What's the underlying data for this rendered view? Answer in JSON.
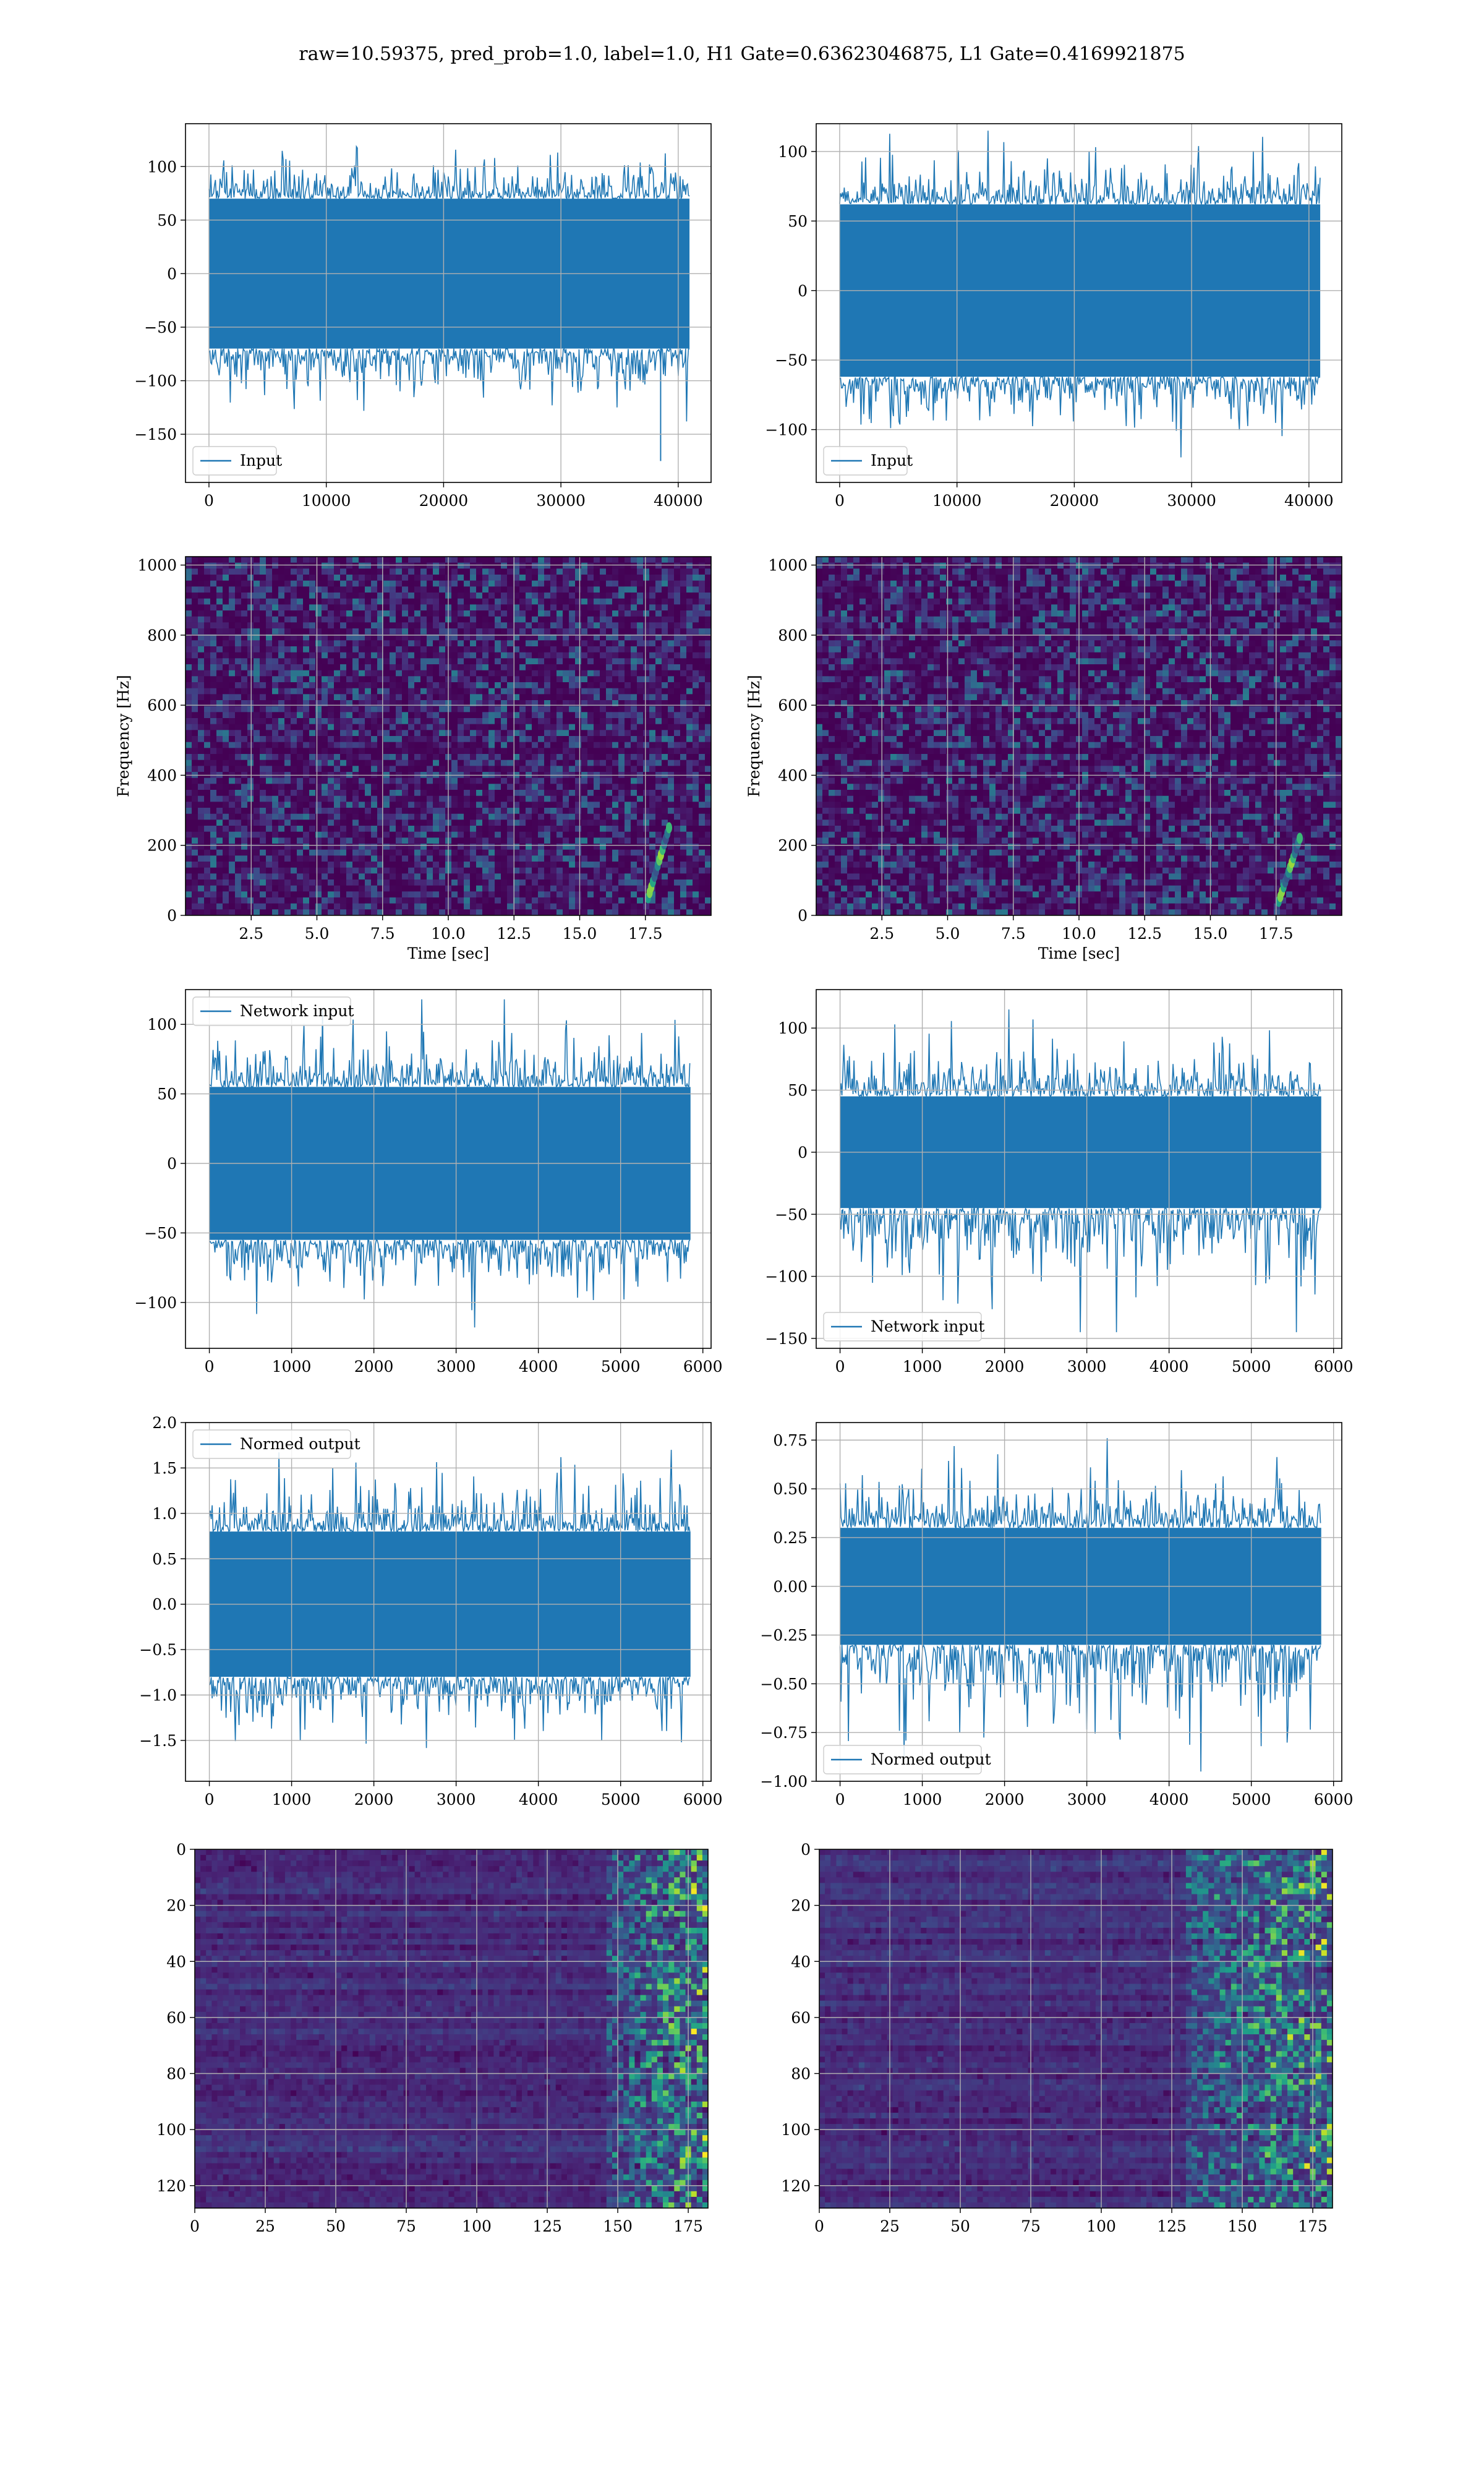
{
  "figure_title": "raw=10.59375, pred_prob=1.0, label=1.0, H1 Gate=0.63623046875, L1 Gate=0.4169921875",
  "colors": {
    "line": "#1f77b4",
    "viridis_low": "#440154",
    "viridis_mid": "#21918c",
    "viridis_high": "#fde725"
  },
  "chart_data": [
    {
      "type": "line",
      "panel": "row1-left",
      "legend": "Input",
      "legend_loc": "lower-left",
      "xlim": [
        -2000,
        42800
      ],
      "ylim": [
        -195,
        140
      ],
      "xticks": [
        0,
        10000,
        20000,
        30000,
        40000
      ],
      "xtick_labels": [
        "0",
        "10000",
        "20000",
        "30000",
        "40000"
      ],
      "yticks": [
        -150,
        -100,
        -50,
        0,
        50,
        100
      ],
      "ytick_labels": [
        "−150",
        "−100",
        "−50",
        "0",
        "50",
        "100"
      ],
      "signal": {
        "x_start": 0,
        "x_end": 40960,
        "band": [
          -70,
          70
        ],
        "spikes": [
          -145,
          132
        ],
        "notable": [
          {
            "x": 38500,
            "y": -175
          }
        ]
      }
    },
    {
      "type": "line",
      "panel": "row1-right",
      "legend": "Input",
      "legend_loc": "lower-left",
      "xlim": [
        -2000,
        42800
      ],
      "ylim": [
        -138,
        120
      ],
      "xticks": [
        0,
        10000,
        20000,
        30000,
        40000
      ],
      "xtick_labels": [
        "0",
        "10000",
        "20000",
        "30000",
        "40000"
      ],
      "yticks": [
        -100,
        -50,
        0,
        50,
        100
      ],
      "ytick_labels": [
        "−100",
        "−50",
        "0",
        "50",
        "100"
      ],
      "signal": {
        "x_start": 0,
        "x_end": 40960,
        "band": [
          -62,
          62
        ],
        "spikes": [
          -120,
          115
        ],
        "notable": []
      }
    },
    {
      "type": "heatmap",
      "panel": "row2-left",
      "xlabel": "Time [sec]",
      "ylabel": "Frequency [Hz]",
      "xlim": [
        0,
        20
      ],
      "ylim": [
        0,
        1024
      ],
      "xticks": [
        2.5,
        5.0,
        7.5,
        10.0,
        12.5,
        15.0,
        17.5
      ],
      "xtick_labels": [
        "2.5",
        "5.0",
        "7.5",
        "10.0",
        "12.5",
        "15.0",
        "17.5"
      ],
      "yticks": [
        0,
        200,
        400,
        600,
        800,
        1000
      ],
      "ytick_labels": [
        "0",
        "200",
        "400",
        "600",
        "800",
        "1000"
      ],
      "colormap": "viridis",
      "chirp": {
        "t": [
          17.6,
          18.4
        ],
        "f": [
          50,
          250
        ]
      }
    },
    {
      "type": "heatmap",
      "panel": "row2-right",
      "xlabel": "Time [sec]",
      "ylabel": "Frequency [Hz]",
      "xlim": [
        0,
        20
      ],
      "ylim": [
        0,
        1024
      ],
      "xticks": [
        2.5,
        5.0,
        7.5,
        10.0,
        12.5,
        15.0,
        17.5
      ],
      "xtick_labels": [
        "2.5",
        "5.0",
        "7.5",
        "10.0",
        "12.5",
        "15.0",
        "17.5"
      ],
      "yticks": [
        0,
        200,
        400,
        600,
        800,
        1000
      ],
      "ytick_labels": [
        "0",
        "200",
        "400",
        "600",
        "800",
        "1000"
      ],
      "colormap": "viridis",
      "chirp": {
        "t": [
          17.6,
          18.4
        ],
        "f": [
          40,
          220
        ]
      }
    },
    {
      "type": "line",
      "panel": "row3-left",
      "legend": "Network input",
      "legend_loc": "upper-left",
      "xlim": [
        -290,
        6100
      ],
      "ylim": [
        -133,
        125
      ],
      "xticks": [
        0,
        1000,
        2000,
        3000,
        4000,
        5000,
        6000
      ],
      "xtick_labels": [
        "0",
        "1000",
        "2000",
        "3000",
        "4000",
        "5000",
        "6000"
      ],
      "yticks": [
        -100,
        -50,
        0,
        50,
        100
      ],
      "ytick_labels": [
        "−100",
        "−50",
        "0",
        "50",
        "100"
      ],
      "signal": {
        "x_start": 0,
        "x_end": 5850,
        "band": [
          -55,
          55
        ],
        "spikes": [
          -118,
          118
        ],
        "notable": []
      }
    },
    {
      "type": "line",
      "panel": "row3-right",
      "legend": "Network input",
      "legend_loc": "lower-left",
      "xlim": [
        -290,
        6100
      ],
      "ylim": [
        -158,
        131
      ],
      "xticks": [
        0,
        1000,
        2000,
        3000,
        4000,
        5000,
        6000
      ],
      "xtick_labels": [
        "0",
        "1000",
        "2000",
        "3000",
        "4000",
        "5000",
        "6000"
      ],
      "yticks": [
        -150,
        -100,
        -50,
        0,
        50,
        100
      ],
      "ytick_labels": [
        "−150",
        "−100",
        "−50",
        "0",
        "50",
        "100"
      ],
      "signal": {
        "x_start": 0,
        "x_end": 5850,
        "band": [
          -45,
          45
        ],
        "spikes": [
          -145,
          115
        ],
        "notable": []
      }
    },
    {
      "type": "line",
      "panel": "row4-left",
      "legend": "Normed output",
      "legend_loc": "upper-left",
      "xlim": [
        -290,
        6100
      ],
      "ylim": [
        -1.95,
        2.0
      ],
      "xticks": [
        0,
        1000,
        2000,
        3000,
        4000,
        5000,
        6000
      ],
      "xtick_labels": [
        "0",
        "1000",
        "2000",
        "3000",
        "4000",
        "5000",
        "6000"
      ],
      "yticks": [
        -1.5,
        -1.0,
        -0.5,
        0.0,
        0.5,
        1.0,
        1.5,
        2.0
      ],
      "ytick_labels": [
        "−1.5",
        "−1.0",
        "−0.5",
        "0.0",
        "0.5",
        "1.0",
        "1.5",
        "2.0"
      ],
      "signal": {
        "x_start": 0,
        "x_end": 5850,
        "band": [
          -0.8,
          0.8
        ],
        "spikes": [
          -1.75,
          1.7
        ],
        "notable": []
      }
    },
    {
      "type": "line",
      "panel": "row4-right",
      "legend": "Normed output",
      "legend_loc": "lower-left",
      "xlim": [
        -290,
        6100
      ],
      "ylim": [
        -1.0,
        0.84
      ],
      "xticks": [
        0,
        1000,
        2000,
        3000,
        4000,
        5000,
        6000
      ],
      "xtick_labels": [
        "0",
        "1000",
        "2000",
        "3000",
        "4000",
        "5000",
        "6000"
      ],
      "yticks": [
        -1.0,
        -0.75,
        -0.5,
        -0.25,
        0.0,
        0.25,
        0.5,
        0.75
      ],
      "ytick_labels": [
        "−1.00",
        "−0.75",
        "−0.50",
        "−0.25",
        "0.00",
        "0.25",
        "0.50",
        "0.75"
      ],
      "signal": {
        "x_start": 0,
        "x_end": 5850,
        "band": [
          -0.3,
          0.3
        ],
        "spikes": [
          -0.95,
          0.76
        ],
        "notable": []
      }
    },
    {
      "type": "heatmap",
      "panel": "row5-left",
      "xlabel": "",
      "ylabel": "",
      "xlim": [
        0,
        182
      ],
      "ylim": [
        128,
        0
      ],
      "xticks": [
        0,
        25,
        50,
        75,
        100,
        125,
        150,
        175
      ],
      "xtick_labels": [
        "0",
        "25",
        "50",
        "75",
        "100",
        "125",
        "150",
        "175"
      ],
      "yticks": [
        0,
        20,
        40,
        60,
        80,
        100,
        120
      ],
      "ytick_labels": [
        "0",
        "20",
        "40",
        "60",
        "80",
        "100",
        "120"
      ],
      "colormap": "viridis",
      "bright_cols": [
        145,
        182
      ]
    },
    {
      "type": "heatmap",
      "panel": "row5-right",
      "xlabel": "",
      "ylabel": "",
      "xlim": [
        0,
        182
      ],
      "ylim": [
        128,
        0
      ],
      "xticks": [
        0,
        25,
        50,
        75,
        100,
        125,
        150,
        175
      ],
      "xtick_labels": [
        "0",
        "25",
        "50",
        "75",
        "100",
        "125",
        "150",
        "175"
      ],
      "yticks": [
        0,
        20,
        40,
        60,
        80,
        100,
        120
      ],
      "ytick_labels": [
        "0",
        "20",
        "40",
        "60",
        "80",
        "100",
        "120"
      ],
      "colormap": "viridis",
      "bright_cols": [
        130,
        182
      ]
    }
  ]
}
